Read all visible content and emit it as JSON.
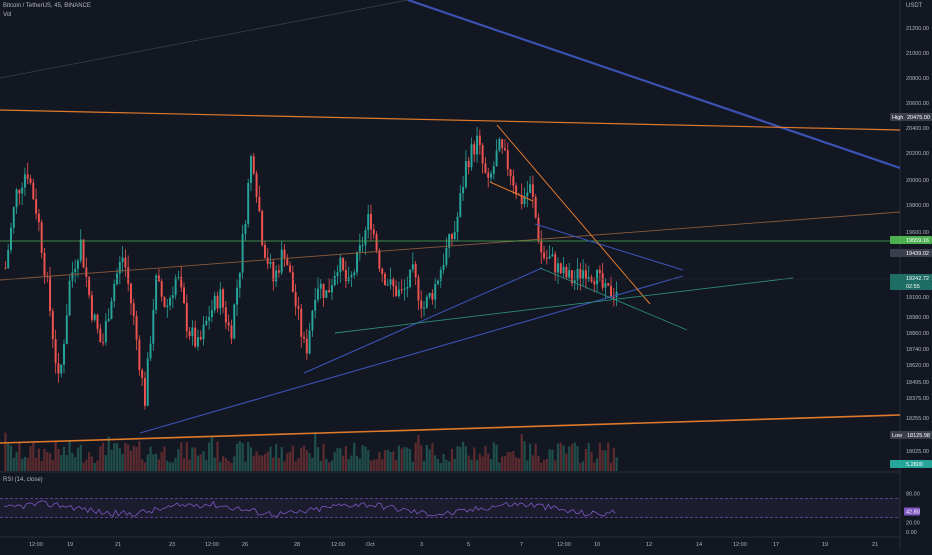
{
  "header": {
    "symbol_line": "Bitcoin / TetherUS, 45, BINANCE",
    "vol_label": "Vol",
    "rsi_label": "RSI (14, close)",
    "currency": "USDT"
  },
  "colors": {
    "background": "#131722",
    "candle_up": "#26a69a",
    "candle_down": "#ef5350",
    "vol_up": "#1f4e4b",
    "vol_down": "#5c2b2f",
    "trend_blue": "#3b52b4",
    "trend_orange": "#e07a2b",
    "trend_teal": "#2b8c7e",
    "trend_green": "#4caf50",
    "rsi_line": "#7e57c2",
    "rsi_band": "#7e57c2"
  },
  "chart_data": [
    {
      "type": "candlestick",
      "title": "Bitcoin / TetherUS, 45, BINANCE",
      "y_axis_unit": "USDT",
      "y_ticks": [
        "21200.00",
        "21000.00",
        "20800.00",
        "20600.00",
        "20400.00",
        "20200.00",
        "20000.00",
        "19800.00",
        "19600.00",
        "19100.00",
        "18980.00",
        "18860.00",
        "18740.00",
        "18620.00",
        "18495.00",
        "18375.00",
        "18255.00",
        "18025.00"
      ],
      "x_ticks": [
        "12:00",
        "19",
        "21",
        "23",
        "12:00",
        "26",
        "28",
        "12:00",
        "Oct",
        "3",
        "5",
        "7",
        "12:00",
        "10",
        "12",
        "14",
        "12:00",
        "17",
        "19",
        "21"
      ],
      "price_labels": [
        {
          "label": "High",
          "value": "20475.00"
        },
        {
          "label": "",
          "value": "19559.16"
        },
        {
          "label": "",
          "value": "19439.02"
        },
        {
          "label": "",
          "value": "19242.72"
        },
        {
          "label": "",
          "value": "02:55"
        },
        {
          "label": "Low",
          "value": "18125.98"
        },
        {
          "label": "",
          "value": "5.2800"
        }
      ],
      "approx_close_series": [
        19400,
        19950,
        20150,
        19800,
        19200,
        18500,
        19300,
        19600,
        19100,
        18800,
        19250,
        19500,
        19000,
        18400,
        19300,
        19100,
        19350,
        18950,
        18800,
        19050,
        19200,
        18900,
        19500,
        20300,
        19600,
        19300,
        19550,
        19150,
        18750,
        19300,
        19200,
        19450,
        19250,
        19500,
        19800,
        19400,
        19250,
        19200,
        19350,
        19100,
        19250,
        19500,
        19700,
        20200,
        20350,
        20000,
        20300,
        20150,
        19900,
        20000,
        19500,
        19450,
        19350,
        19300,
        19400,
        19350,
        19200,
        19242.72
      ],
      "high": 20475.0,
      "low": 18125.98
    },
    {
      "type": "line",
      "title": "RSI (14, close)",
      "y_ticks": [
        "80.00",
        "42.80",
        "20.00",
        "0.00"
      ],
      "current_value": "42.80",
      "band_upper": 70,
      "band_lower": 30
    }
  ]
}
